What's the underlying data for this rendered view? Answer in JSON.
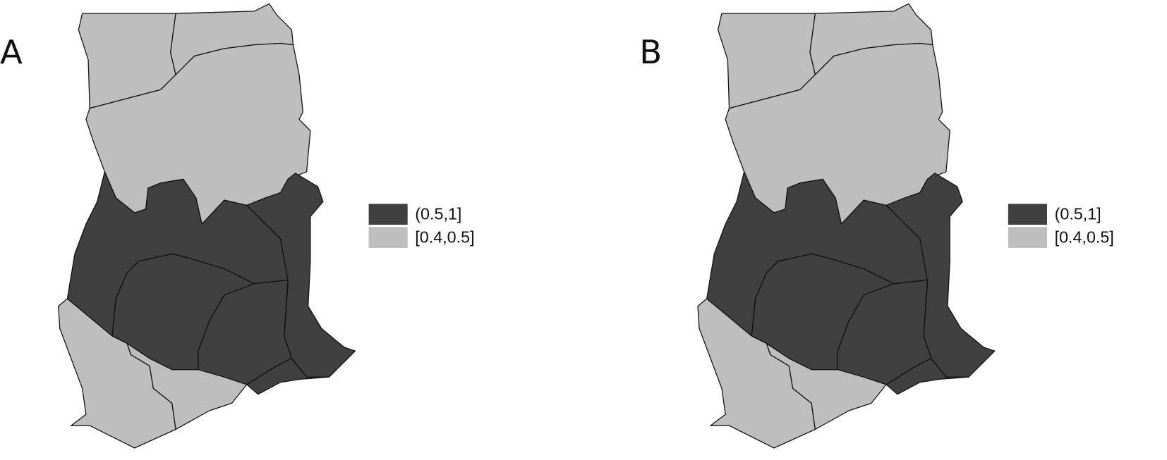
{
  "panels": [
    {
      "label": "A",
      "legend": [
        {
          "label": "(0.5,1]",
          "color": "#404040"
        },
        {
          "label": "[0.4,0.5]",
          "color": "#bebebe"
        }
      ]
    },
    {
      "label": "B",
      "legend": [
        {
          "label": "(0.5,1]",
          "color": "#404040"
        },
        {
          "label": "[0.4,0.5]",
          "color": "#bebebe"
        }
      ]
    }
  ]
}
